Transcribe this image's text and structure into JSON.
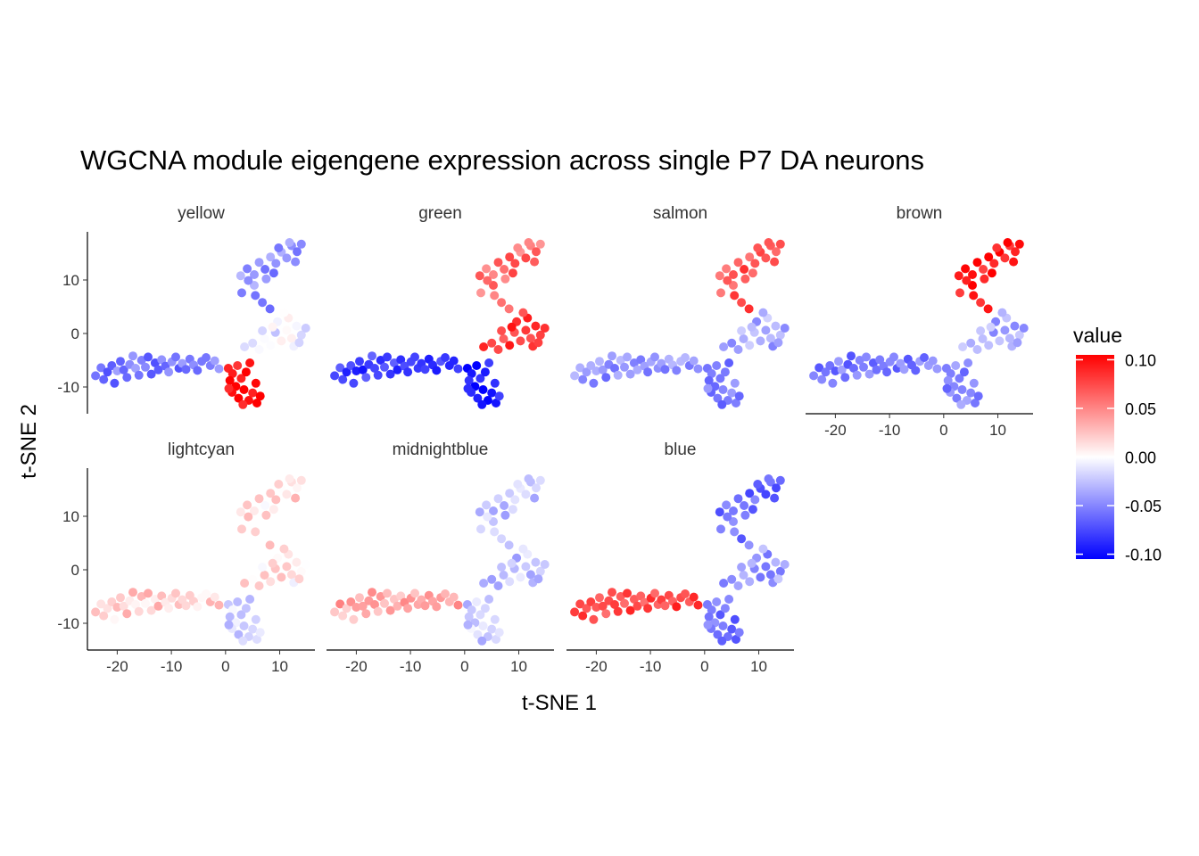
{
  "chart_data": {
    "type": "scatter",
    "title": "WGCNA module eigengene expression across single P7 DA neurons",
    "xlabel": "t-SNE 1",
    "ylabel": "t-SNE 2",
    "xlim": [
      -25.5,
      16.5
    ],
    "ylim": [
      -15,
      19
    ],
    "x_ticks": [
      -20,
      -10,
      0,
      10
    ],
    "y_ticks": [
      -10,
      0,
      10
    ],
    "x_tick_labels": [
      "-20",
      "-10",
      "0",
      "10"
    ],
    "y_tick_labels": [
      "-10",
      "0",
      "10"
    ],
    "grid": false,
    "legend": {
      "title": "value",
      "position": "right",
      "labels": [
        "0.10",
        "0.05",
        "0.00",
        "-0.05",
        "-0.10"
      ],
      "values": [
        0.1,
        0.05,
        0.0,
        -0.05,
        -0.1
      ],
      "range": [
        -0.105,
        0.105
      ],
      "colors": {
        "low": "#0000ff",
        "mid": "#ffffff",
        "high": "#ff0000"
      }
    },
    "clusters": {
      "left_arm": [
        [
          -24,
          -7.9
        ],
        [
          -23,
          -6.4
        ],
        [
          -22.5,
          -8.6
        ],
        [
          -21.8,
          -7.2
        ],
        [
          -21,
          -6
        ],
        [
          -20.5,
          -9.3
        ],
        [
          -20,
          -7
        ],
        [
          -19.4,
          -5.2
        ],
        [
          -18.8,
          -6.8
        ],
        [
          -18.2,
          -8.2
        ],
        [
          -17.7,
          -5.8
        ],
        [
          -17.1,
          -4.2
        ],
        [
          -16.6,
          -6.5
        ],
        [
          -16,
          -7.8
        ],
        [
          -15.5,
          -5
        ],
        [
          -14.8,
          -6.3
        ],
        [
          -14.3,
          -4.4
        ],
        [
          -13.7,
          -7.6
        ],
        [
          -13,
          -5.5
        ],
        [
          -12.4,
          -6.8
        ],
        [
          -11.8,
          -4.9
        ],
        [
          -11.1,
          -6.1
        ],
        [
          -10.5,
          -7.2
        ],
        [
          -9.9,
          -5.3
        ],
        [
          -9.2,
          -4.4
        ],
        [
          -8.6,
          -6.5
        ],
        [
          -8,
          -5.6
        ],
        [
          -7.3,
          -6.7
        ],
        [
          -6.6,
          -4.8
        ],
        [
          -5.9,
          -5.9
        ],
        [
          -5.2,
          -6.9
        ],
        [
          -4.4,
          -5.2
        ],
        [
          -3.6,
          -4.5
        ],
        [
          -2.8,
          -6
        ],
        [
          -2,
          -5.1
        ],
        [
          -1.2,
          -6.6
        ]
      ],
      "bottom_stem": [
        [
          0.5,
          -6.5
        ],
        [
          1.3,
          -7.5
        ],
        [
          2.2,
          -6
        ],
        [
          0.8,
          -8.8
        ],
        [
          1.9,
          -9.9
        ],
        [
          2.9,
          -8.4
        ],
        [
          3.8,
          -7.2
        ],
        [
          4.5,
          -5.5
        ],
        [
          1.2,
          -11
        ],
        [
          2.4,
          -12.1
        ],
        [
          3.4,
          -10.5
        ],
        [
          4.3,
          -12.5
        ],
        [
          5,
          -11.1
        ],
        [
          5.8,
          -13
        ],
        [
          6.4,
          -11.7
        ],
        [
          0.6,
          -10.3
        ],
        [
          3.2,
          -13.3
        ],
        [
          5.6,
          -9.3
        ]
      ],
      "right_middle": [
        [
          3.5,
          -2.5
        ],
        [
          5,
          -1.8
        ],
        [
          6.2,
          -3
        ],
        [
          7.2,
          -1
        ],
        [
          8.3,
          -2.2
        ],
        [
          9.2,
          0.2
        ],
        [
          10.3,
          -1.4
        ],
        [
          11.3,
          0.6
        ],
        [
          12.2,
          -0.9
        ],
        [
          13.1,
          1.4
        ],
        [
          14,
          -0.3
        ],
        [
          14.8,
          1
        ],
        [
          9.6,
          2.2
        ],
        [
          11.6,
          2.9
        ],
        [
          12.6,
          -2.4
        ],
        [
          10.8,
          3.9
        ],
        [
          8.7,
          1.2
        ],
        [
          6.8,
          0.5
        ],
        [
          13.6,
          -1.7
        ]
      ],
      "top_arm": [
        [
          2.8,
          10.8
        ],
        [
          4,
          12.1
        ],
        [
          5.3,
          11
        ],
        [
          6.2,
          13.3
        ],
        [
          7.3,
          12
        ],
        [
          8.3,
          14.3
        ],
        [
          9.3,
          13.1
        ],
        [
          10.3,
          15.2
        ],
        [
          11.3,
          14.1
        ],
        [
          12.2,
          16.4
        ],
        [
          13.2,
          15.3
        ],
        [
          14,
          16.7
        ],
        [
          5.3,
          9
        ],
        [
          4.2,
          9.9
        ],
        [
          7.5,
          10.2
        ],
        [
          9.8,
          16
        ],
        [
          11.8,
          17
        ],
        [
          3,
          7.6
        ],
        [
          5.5,
          7.1
        ],
        [
          6.8,
          5.8
        ],
        [
          8.2,
          4.6
        ],
        [
          12.9,
          13.4
        ],
        [
          8.9,
          11.3
        ]
      ]
    },
    "panels": [
      {
        "name": "yellow",
        "values": {
          "left_arm": -0.055,
          "bottom_stem": 0.1,
          "right_middle": -0.01,
          "top_arm": -0.045
        }
      },
      {
        "name": "green",
        "values": {
          "left_arm": -0.08,
          "bottom_stem": -0.09,
          "right_middle": 0.08,
          "top_arm": 0.06
        }
      },
      {
        "name": "salmon",
        "values": {
          "left_arm": -0.045,
          "bottom_stem": -0.05,
          "right_middle": -0.035,
          "top_arm": 0.07
        }
      },
      {
        "name": "brown",
        "values": {
          "left_arm": -0.055,
          "bottom_stem": -0.05,
          "right_middle": -0.035,
          "top_arm": 0.095
        }
      },
      {
        "name": "lightcyan",
        "values": {
          "left_arm": 0.02,
          "bottom_stem": -0.02,
          "right_middle": 0.01,
          "top_arm": 0.015
        }
      },
      {
        "name": "midnightblue",
        "values": {
          "left_arm": 0.035,
          "bottom_stem": -0.02,
          "right_middle": -0.025,
          "top_arm": -0.025
        }
      },
      {
        "name": "blue",
        "values": {
          "left_arm": 0.075,
          "bottom_stem": -0.06,
          "right_middle": -0.04,
          "top_arm": -0.06
        }
      }
    ]
  }
}
